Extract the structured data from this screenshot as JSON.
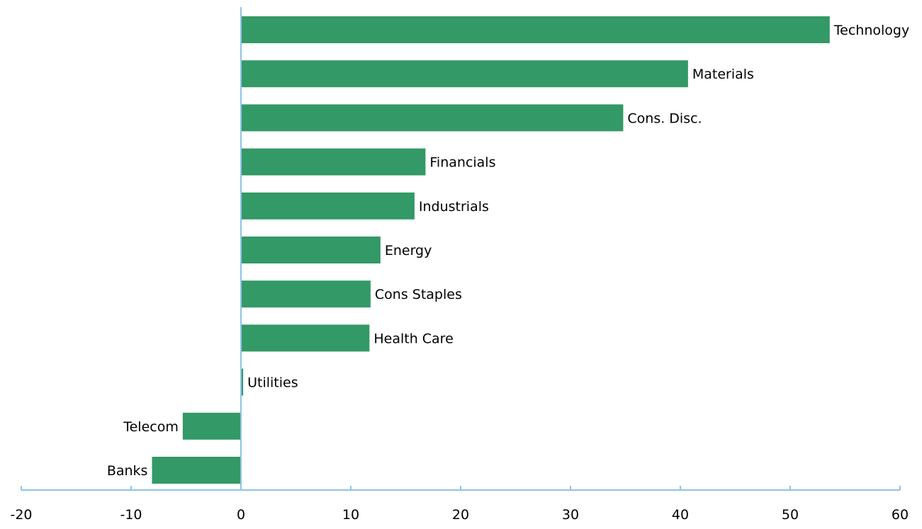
{
  "chart_data": {
    "type": "bar",
    "orientation": "horizontal",
    "title": "",
    "xlabel": "",
    "ylabel": "",
    "categories": [
      "Technology",
      "Materials",
      "Cons. Disc.",
      "Financials",
      "Industrials",
      "Energy",
      "Cons Staples",
      "Health Care",
      "Utilities",
      "Telecom",
      "Banks"
    ],
    "values": [
      53.6,
      40.7,
      34.8,
      16.8,
      15.8,
      12.7,
      11.8,
      11.7,
      0.2,
      -5.3,
      -8.1
    ],
    "xlim": [
      -20,
      60
    ],
    "xticks": [
      -20,
      -10,
      0,
      10,
      20,
      30,
      40,
      50,
      60
    ],
    "xtick_labels": [
      "-20",
      "-10",
      "0",
      "10",
      "20",
      "30",
      "40",
      "50",
      "60"
    ],
    "grid": false,
    "legend": "none",
    "data_labels": "category names at bar ends",
    "colors": {
      "bar": "#339966",
      "axis": "#8fc3e6"
    }
  }
}
